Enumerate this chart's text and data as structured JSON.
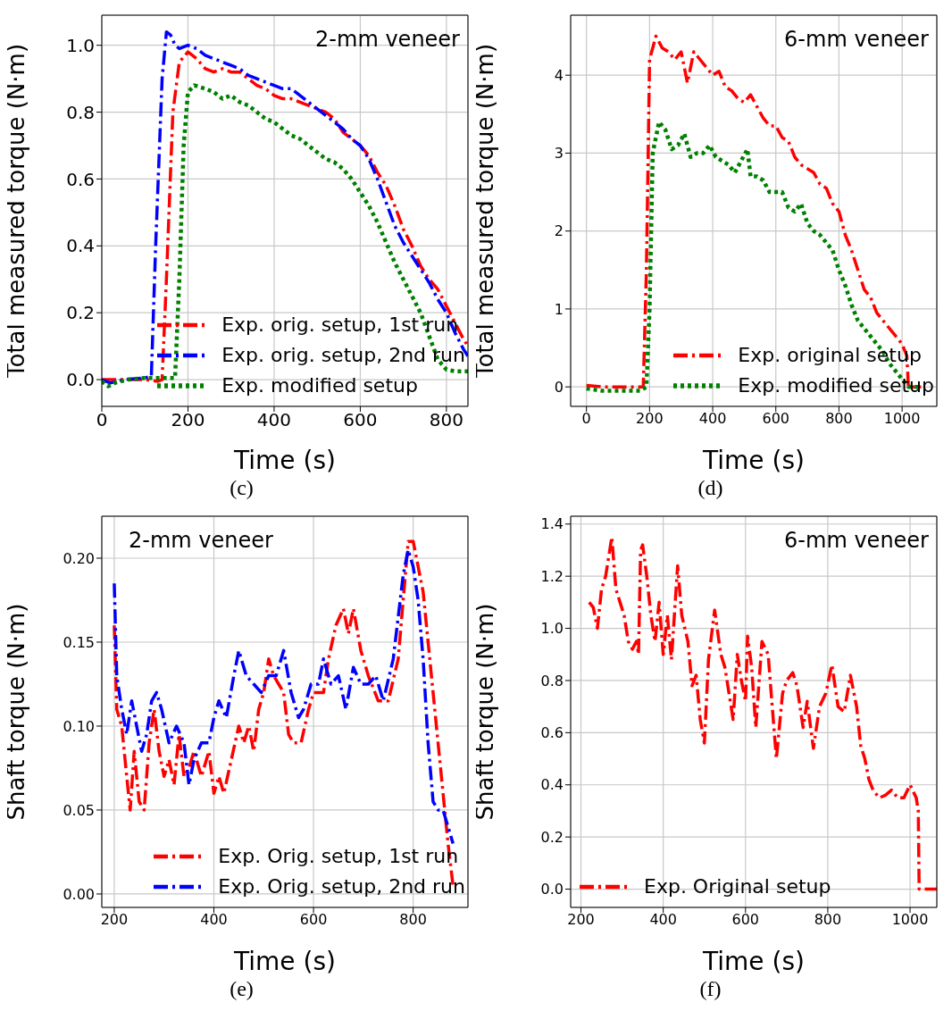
{
  "chart_data": [
    {
      "type": "line",
      "xlabel": "Time (s)",
      "ylabel": "Total measured torque (N·m)",
      "annotations": [
        "2-mm veneer",
        "(c)"
      ],
      "xlim": [
        0,
        850
      ],
      "xticks": [
        0,
        200,
        400,
        600,
        800
      ],
      "ylim": [
        -0.08,
        1.09
      ],
      "yticks": [
        {
          "value": 0,
          "label": "0.0"
        },
        {
          "value": 0.2,
          "label": "0.2"
        },
        {
          "value": 0.4,
          "label": "0.4"
        },
        {
          "value": 0.6,
          "label": "0.6"
        },
        {
          "value": 0.8,
          "label": "0.8"
        },
        {
          "value": 1,
          "label": "1.0"
        }
      ],
      "grid": true,
      "legend": "bottom right",
      "series": [
        {
          "name": "Exp. orig. setup, 1st run",
          "color": "#ff0000",
          "line_style": "dashed",
          "x": [
            0,
            50,
            100,
            130,
            140,
            150,
            165,
            180,
            200,
            220,
            240,
            260,
            280,
            300,
            320,
            340,
            360,
            380,
            400,
            420,
            440,
            460,
            480,
            500,
            520,
            540,
            560,
            580,
            600,
            620,
            640,
            660,
            680,
            700,
            720,
            740,
            760,
            780,
            800,
            820,
            840,
            850
          ],
          "values": [
            0,
            0,
            0,
            -0.005,
            0,
            0.3,
            0.8,
            0.95,
            0.98,
            0.96,
            0.93,
            0.92,
            0.93,
            0.92,
            0.92,
            0.9,
            0.88,
            0.87,
            0.85,
            0.84,
            0.84,
            0.83,
            0.82,
            0.81,
            0.8,
            0.78,
            0.74,
            0.72,
            0.7,
            0.67,
            0.62,
            0.58,
            0.52,
            0.45,
            0.4,
            0.34,
            0.3,
            0.27,
            0.22,
            0.17,
            0.12,
            0.1
          ]
        },
        {
          "name": "Exp. orig. setup, 2nd run",
          "color": "#0000ff",
          "line_style": "dashed",
          "x": [
            0,
            20,
            50,
            100,
            115,
            125,
            140,
            150,
            160,
            170,
            180,
            200,
            220,
            240,
            260,
            280,
            300,
            320,
            340,
            360,
            380,
            400,
            420,
            440,
            460,
            480,
            500,
            520,
            540,
            560,
            580,
            600,
            620,
            640,
            660,
            680,
            700,
            720,
            740,
            760,
            780,
            800,
            820,
            840,
            850
          ],
          "values": [
            0,
            -0.01,
            0,
            0.005,
            0.01,
            0.4,
            0.9,
            1.04,
            1.03,
            1.0,
            0.99,
            1.0,
            0.99,
            0.97,
            0.96,
            0.95,
            0.94,
            0.93,
            0.91,
            0.9,
            0.89,
            0.88,
            0.87,
            0.87,
            0.85,
            0.83,
            0.81,
            0.79,
            0.77,
            0.75,
            0.72,
            0.7,
            0.66,
            0.6,
            0.53,
            0.46,
            0.41,
            0.37,
            0.33,
            0.29,
            0.24,
            0.2,
            0.14,
            0.09,
            0.07
          ]
        },
        {
          "name": "Exp. modified setup",
          "color": "#008000",
          "line_style": "dotted",
          "x": [
            0,
            15,
            30,
            60,
            100,
            150,
            170,
            180,
            190,
            200,
            215,
            240,
            260,
            280,
            300,
            320,
            340,
            360,
            380,
            400,
            420,
            440,
            460,
            480,
            500,
            520,
            540,
            560,
            580,
            600,
            620,
            640,
            660,
            680,
            700,
            720,
            740,
            760,
            780,
            800,
            820,
            850
          ],
          "values": [
            -0.005,
            -0.02,
            -0.01,
            0,
            0.005,
            0.005,
            0.005,
            0.3,
            0.7,
            0.86,
            0.88,
            0.87,
            0.86,
            0.84,
            0.85,
            0.83,
            0.82,
            0.8,
            0.78,
            0.77,
            0.75,
            0.73,
            0.72,
            0.7,
            0.68,
            0.66,
            0.65,
            0.63,
            0.6,
            0.56,
            0.52,
            0.47,
            0.41,
            0.35,
            0.3,
            0.25,
            0.2,
            0.13,
            0.06,
            0.03,
            0.025,
            0.025
          ]
        }
      ]
    },
    {
      "type": "line",
      "xlabel": "Time (s)",
      "ylabel": "Total measured torque (N·m)",
      "annotations": [
        "6-mm veneer",
        "(d)"
      ],
      "xlim": [
        -50,
        1110
      ],
      "xticks": [
        0,
        200,
        400,
        600,
        800,
        1000
      ],
      "ylim": [
        -0.25,
        4.77
      ],
      "yticks": [
        0,
        1,
        2,
        3,
        4
      ],
      "grid": true,
      "legend": "bottom right",
      "series": [
        {
          "name": "Exp. original setup",
          "color": "#ff0000",
          "line_style": "dashed",
          "x": [
            0,
            50,
            100,
            180,
            190,
            200,
            220,
            240,
            260,
            280,
            300,
            320,
            340,
            360,
            380,
            400,
            420,
            440,
            460,
            480,
            500,
            520,
            540,
            560,
            580,
            600,
            620,
            640,
            660,
            680,
            700,
            720,
            740,
            760,
            780,
            800,
            820,
            840,
            860,
            880,
            900,
            920,
            940,
            960,
            980,
            1000,
            1015,
            1020,
            1040,
            1060
          ],
          "values": [
            0.02,
            0,
            0,
            0,
            1.5,
            4.2,
            4.5,
            4.35,
            4.3,
            4.2,
            4.3,
            3.9,
            4.3,
            4.2,
            4.1,
            4.0,
            4.05,
            3.85,
            3.8,
            3.7,
            3.65,
            3.75,
            3.6,
            3.45,
            3.35,
            3.35,
            3.2,
            3.15,
            2.95,
            2.85,
            2.8,
            2.75,
            2.6,
            2.55,
            2.35,
            2.25,
            1.95,
            1.75,
            1.5,
            1.25,
            1.15,
            0.95,
            0.85,
            0.75,
            0.65,
            0.55,
            0.4,
            0,
            0,
            0
          ]
        },
        {
          "name": "Exp. modified setup",
          "color": "#008000",
          "line_style": "dotted",
          "x": [
            0,
            50,
            100,
            170,
            190,
            200,
            210,
            230,
            250,
            270,
            290,
            310,
            330,
            350,
            370,
            390,
            410,
            430,
            450,
            470,
            490,
            510,
            520,
            540,
            560,
            580,
            600,
            620,
            640,
            660,
            680,
            700,
            720,
            740,
            760,
            780,
            800,
            820,
            840,
            860,
            880,
            900,
            920,
            940,
            960,
            980,
            1000,
            1020,
            1060
          ],
          "values": [
            -0.02,
            -0.05,
            -0.05,
            -0.05,
            0,
            1.0,
            3.0,
            3.4,
            3.3,
            3.05,
            3.1,
            3.25,
            2.95,
            3.0,
            3.0,
            3.1,
            2.95,
            2.9,
            2.85,
            2.75,
            2.9,
            3.05,
            2.7,
            2.7,
            2.65,
            2.5,
            2.5,
            2.5,
            2.3,
            2.25,
            2.35,
            2.1,
            2.0,
            1.95,
            1.85,
            1.75,
            1.5,
            1.3,
            1.05,
            0.85,
            0.75,
            0.65,
            0.55,
            0.45,
            0.3,
            0.2,
            0.1,
            0,
            0
          ]
        }
      ]
    },
    {
      "type": "line",
      "xlabel": "Time (s)",
      "ylabel": "Shaft torque (N·m)",
      "annotations": [
        "2-mm veneer",
        "(e)"
      ],
      "xlim": [
        175,
        910
      ],
      "xticks": [
        200,
        400,
        600,
        800
      ],
      "ylim": [
        -0.008,
        0.225
      ],
      "yticks": [
        {
          "value": 0,
          "label": "0.00"
        },
        {
          "value": 0.05,
          "label": "0.05"
        },
        {
          "value": 0.1,
          "label": "0.10"
        },
        {
          "value": 0.15,
          "label": "0.15"
        },
        {
          "value": 0.2,
          "label": "0.20"
        }
      ],
      "grid": true,
      "legend": "bottom right",
      "series": [
        {
          "name": "Exp. Orig. setup, 1st run",
          "color": "#ff0000",
          "line_style": "dashed",
          "x": [
            200,
            205,
            215,
            225,
            232,
            240,
            250,
            260,
            270,
            280,
            290,
            300,
            310,
            320,
            330,
            340,
            350,
            360,
            375,
            390,
            400,
            410,
            420,
            435,
            450,
            460,
            470,
            480,
            490,
            500,
            510,
            520,
            530,
            540,
            550,
            560,
            575,
            590,
            600,
            620,
            630,
            645,
            660,
            670,
            680,
            695,
            710,
            730,
            750,
            770,
            790,
            800,
            820,
            840,
            860,
            870,
            880
          ],
          "values": [
            0.16,
            0.11,
            0.1,
            0.07,
            0.05,
            0.085,
            0.055,
            0.05,
            0.09,
            0.11,
            0.085,
            0.07,
            0.08,
            0.065,
            0.095,
            0.07,
            0.075,
            0.085,
            0.07,
            0.085,
            0.06,
            0.07,
            0.06,
            0.08,
            0.1,
            0.09,
            0.1,
            0.085,
            0.11,
            0.12,
            0.14,
            0.13,
            0.125,
            0.12,
            0.095,
            0.09,
            0.09,
            0.11,
            0.12,
            0.12,
            0.14,
            0.16,
            0.17,
            0.155,
            0.17,
            0.145,
            0.13,
            0.115,
            0.115,
            0.14,
            0.21,
            0.21,
            0.18,
            0.12,
            0.06,
            0.03,
            0.005
          ]
        },
        {
          "name": "Exp. Orig. setup, 2nd run",
          "color": "#0000ff",
          "line_style": "dashed",
          "x": [
            200,
            205,
            215,
            225,
            235,
            245,
            255,
            265,
            275,
            285,
            295,
            310,
            325,
            340,
            350,
            360,
            375,
            390,
            400,
            410,
            425,
            440,
            450,
            465,
            480,
            495,
            510,
            525,
            540,
            555,
            570,
            580,
            595,
            610,
            620,
            635,
            650,
            665,
            680,
            695,
            710,
            725,
            740,
            760,
            780,
            790,
            800,
            810,
            820,
            830,
            840,
            850,
            860,
            870,
            880
          ],
          "values": [
            0.185,
            0.13,
            0.11,
            0.095,
            0.115,
            0.1,
            0.085,
            0.095,
            0.115,
            0.12,
            0.11,
            0.09,
            0.1,
            0.09,
            0.065,
            0.08,
            0.09,
            0.09,
            0.105,
            0.115,
            0.105,
            0.13,
            0.145,
            0.13,
            0.125,
            0.12,
            0.13,
            0.13,
            0.145,
            0.12,
            0.105,
            0.11,
            0.125,
            0.125,
            0.14,
            0.125,
            0.13,
            0.11,
            0.135,
            0.125,
            0.125,
            0.13,
            0.115,
            0.14,
            0.19,
            0.205,
            0.195,
            0.175,
            0.14,
            0.09,
            0.055,
            0.05,
            0.05,
            0.04,
            0.03
          ]
        }
      ]
    },
    {
      "type": "line",
      "xlabel": "Time (s)",
      "ylabel": "Shaft torque (N·m)",
      "annotations": [
        "6-mm veneer",
        "(f)"
      ],
      "xlim": [
        175,
        1065
      ],
      "xticks": [
        200,
        400,
        600,
        800,
        1000
      ],
      "ylim": [
        -0.07,
        1.43
      ],
      "yticks": [
        {
          "value": 0,
          "label": "0.0"
        },
        {
          "value": 0.2,
          "label": "0.2"
        },
        {
          "value": 0.4,
          "label": "0.4"
        },
        {
          "value": 0.6,
          "label": "0.6"
        },
        {
          "value": 0.8,
          "label": "0.8"
        },
        {
          "value": 1,
          "label": "1.0"
        },
        {
          "value": 1.2,
          "label": "1.2"
        },
        {
          "value": 1.4,
          "label": "1.4"
        }
      ],
      "grid": true,
      "legend": "bottom left",
      "series": [
        {
          "name": "Exp. Original setup",
          "color": "#ff0000",
          "line_style": "dashed",
          "x": [
            220,
            230,
            240,
            250,
            260,
            270,
            275,
            285,
            295,
            305,
            315,
            325,
            335,
            340,
            345,
            350,
            360,
            370,
            380,
            390,
            400,
            410,
            420,
            435,
            445,
            460,
            470,
            480,
            490,
            500,
            510,
            525,
            540,
            550,
            560,
            570,
            580,
            590,
            600,
            605,
            615,
            625,
            640,
            655,
            665,
            675,
            690,
            700,
            715,
            725,
            740,
            750,
            765,
            780,
            795,
            810,
            825,
            840,
            855,
            870,
            880,
            890,
            900,
            910,
            925,
            940,
            955,
            970,
            985,
            1000,
            1015,
            1020,
            1022,
            1040,
            1065
          ],
          "values": [
            1.1,
            1.08,
            1.0,
            1.15,
            1.2,
            1.3,
            1.35,
            1.15,
            1.1,
            1.05,
            0.95,
            0.92,
            0.95,
            0.9,
            1.3,
            1.32,
            1.2,
            1.05,
            0.95,
            1.1,
            0.9,
            1.05,
            0.88,
            1.24,
            1.05,
            0.95,
            0.78,
            0.82,
            0.65,
            0.56,
            0.88,
            1.07,
            0.9,
            0.85,
            0.75,
            0.65,
            0.9,
            0.8,
            0.72,
            0.97,
            0.85,
            0.62,
            0.95,
            0.9,
            0.7,
            0.5,
            0.75,
            0.8,
            0.83,
            0.78,
            0.62,
            0.72,
            0.54,
            0.7,
            0.75,
            0.86,
            0.7,
            0.68,
            0.82,
            0.7,
            0.55,
            0.5,
            0.42,
            0.38,
            0.35,
            0.36,
            0.38,
            0.35,
            0.35,
            0.4,
            0.35,
            0.3,
            0,
            0,
            0
          ]
        }
      ]
    }
  ]
}
